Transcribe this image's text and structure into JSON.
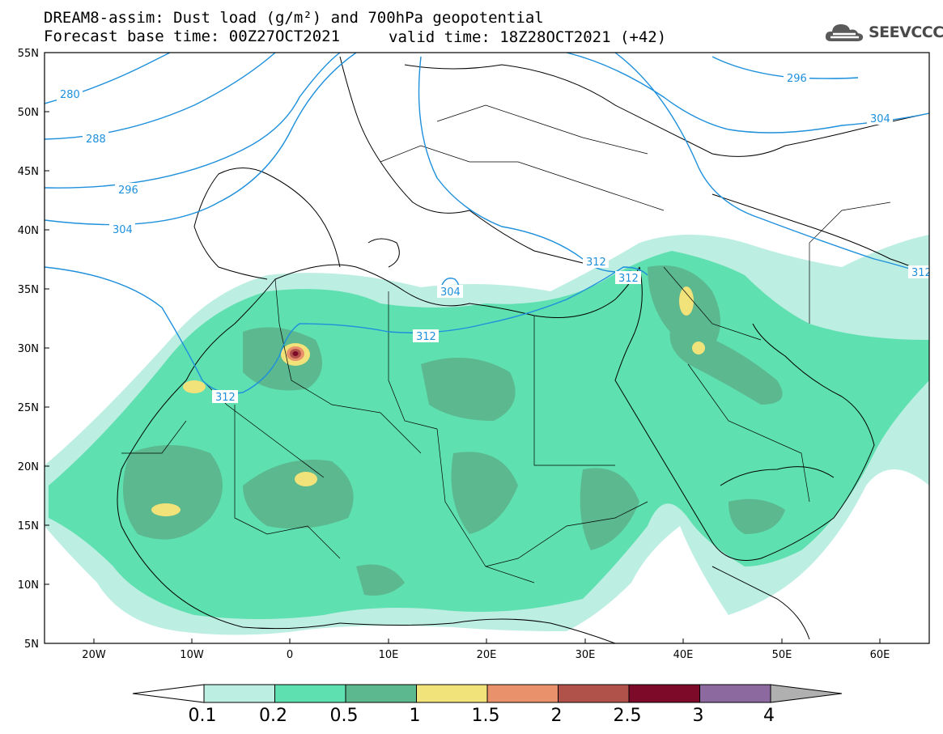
{
  "header": {
    "title_line1": "DREAM8-assim: Dust load (g/m²) and 700hPa geopotential",
    "base_time": "Forecast base time: 00Z27OCT2021",
    "valid_time": "valid time: 18Z28OCT2021 (+42)",
    "logo_text": "SEEVCCC"
  },
  "map": {
    "lat_ticks": [
      "55N",
      "50N",
      "45N",
      "40N",
      "35N",
      "30N",
      "25N",
      "20N",
      "15N",
      "10N",
      "5N"
    ],
    "lon_ticks": [
      "20W",
      "10W",
      "0",
      "10E",
      "20E",
      "30E",
      "40E",
      "50E",
      "60E"
    ],
    "extent": {
      "lon_min": -25,
      "lon_max": 65,
      "lat_min": 5,
      "lat_max": 55
    },
    "contour_labels": [
      "280",
      "288",
      "296",
      "304",
      "296",
      "304",
      "304",
      "312",
      "312",
      "312",
      "312",
      "312"
    ],
    "contour_color": "#1e90dc"
  },
  "colorbar": {
    "levels": [
      "0.1",
      "0.2",
      "0.5",
      "1",
      "1.5",
      "2",
      "2.5",
      "3",
      "4"
    ],
    "colors": [
      "#bdeee2",
      "#5ee0b0",
      "#5cb88e",
      "#f2e27a",
      "#e8916a",
      "#b0524a",
      "#7c0a28",
      "#8c6aa0"
    ],
    "under_color": "#ffffff",
    "over_color": "#b0b0b0"
  }
}
